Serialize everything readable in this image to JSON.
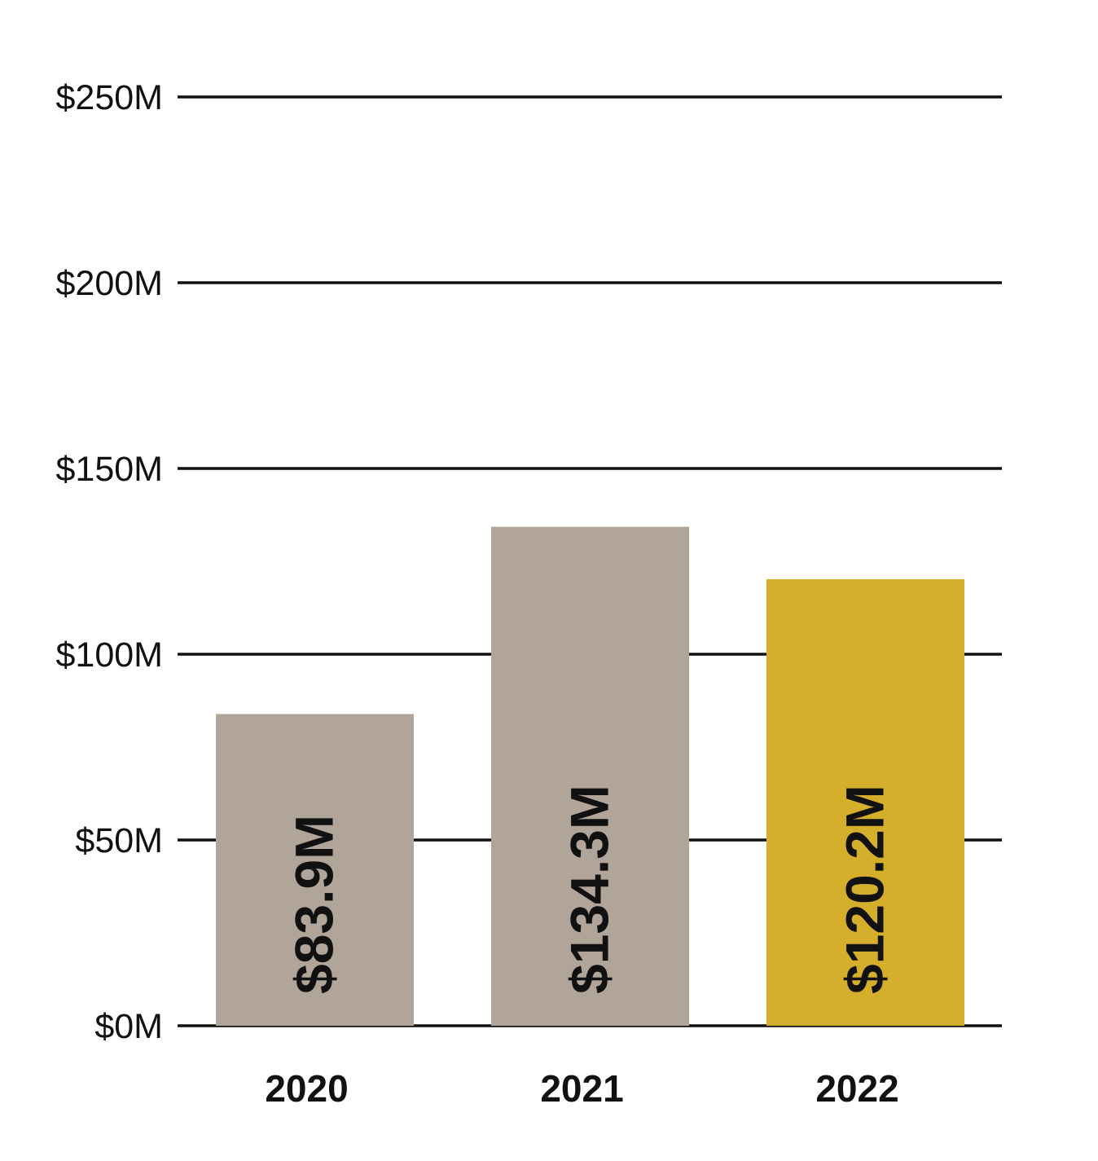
{
  "chart_data": {
    "type": "bar",
    "categories": [
      "2020",
      "2021",
      "2022"
    ],
    "values": [
      83.9,
      134.3,
      120.2
    ],
    "data_labels": [
      "$83.9M",
      "$134.3M",
      "$120.2M"
    ],
    "bar_colors": [
      "#b1a498",
      "#b1a498",
      "#d5ae2c"
    ],
    "yticks": [
      {
        "value": 0,
        "label": "$0M"
      },
      {
        "value": 50,
        "label": "$50M"
      },
      {
        "value": 100,
        "label": "$100M"
      },
      {
        "value": 150,
        "label": "$150M"
      },
      {
        "value": 200,
        "label": "$200M"
      },
      {
        "value": 250,
        "label": "$250M"
      }
    ],
    "ylim": [
      0,
      250
    ],
    "grid": true,
    "gridline_color": "#111111",
    "title": "",
    "xlabel": "",
    "ylabel": ""
  }
}
